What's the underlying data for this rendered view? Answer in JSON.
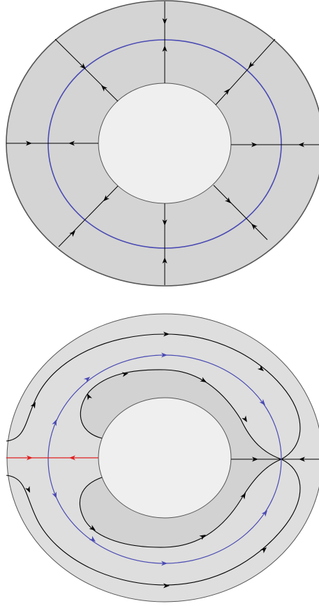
{
  "figure": {
    "panels": [
      {
        "id": "top",
        "description_label": ""
      },
      {
        "id": "bottom",
        "description_label": ""
      }
    ]
  },
  "colors": {
    "outer_fill_top": "#d4d4d4",
    "outer_fill_bottom": "#dedede",
    "inner_band_fill": "#d2d2d2",
    "hole_fill": "#efefef",
    "outline": "#555555",
    "trajectory": "#000000",
    "limit_cycle": "#4a4ab4",
    "unstable_ray": "#e02020"
  },
  "icons": {
    "arrow": "arrowhead-icon"
  }
}
